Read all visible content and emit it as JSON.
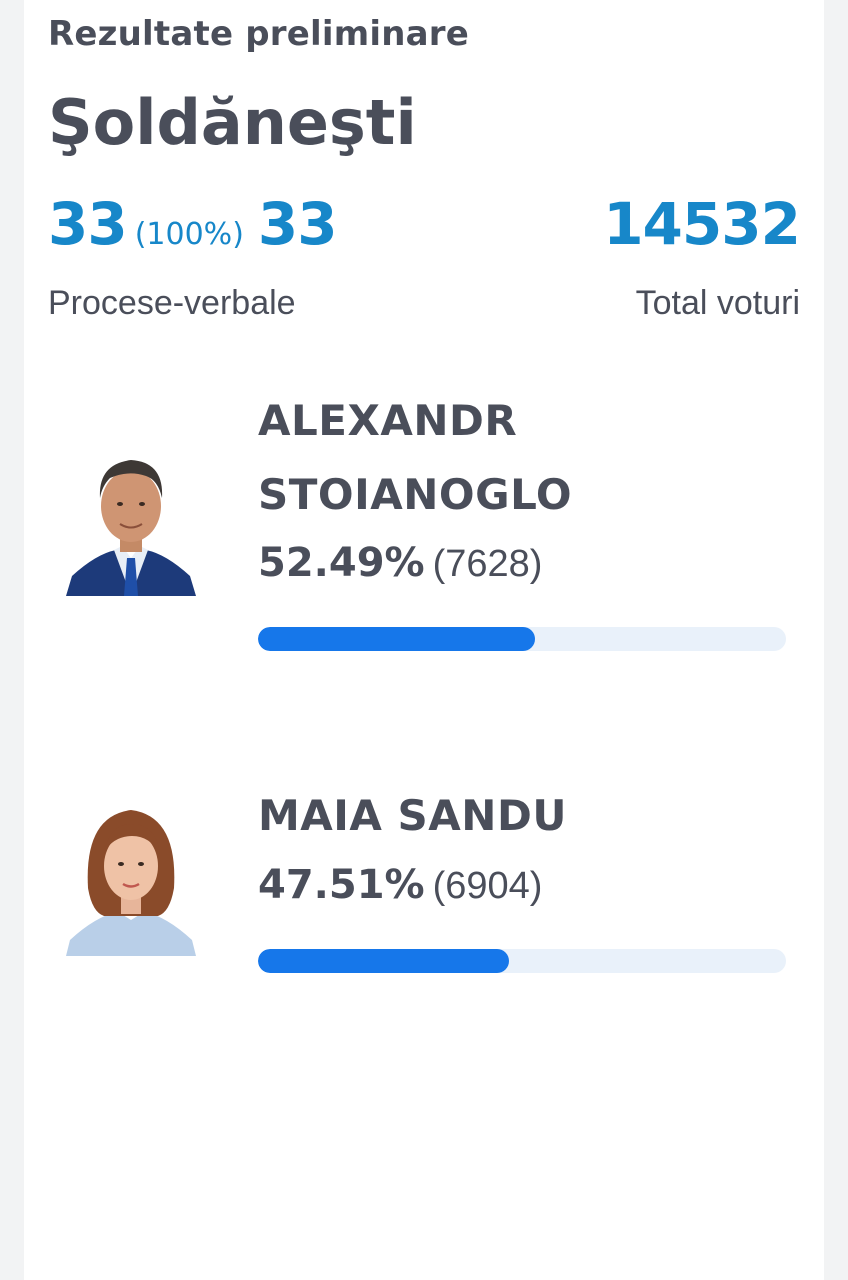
{
  "header": {
    "subtitle": "Rezultate preliminare",
    "place": "Şoldăneşti"
  },
  "stats": {
    "protocols_count": "33",
    "protocols_percent": "(100%)",
    "protocols_total": "33",
    "protocols_label": "Procese-verbale",
    "total_votes": "14532",
    "total_votes_label": "Total voturi"
  },
  "colors": {
    "accent": "#1787c9",
    "bar_fill": "#1677ea",
    "bar_track": "#e9f1fa",
    "text": "#4a4e5a"
  },
  "candidates": [
    {
      "name_line1": "ALEXANDR",
      "name_line2": "STOIANOGLO",
      "percent": "52.49%",
      "votes": "(7628)",
      "share": 0.5249
    },
    {
      "name_line1": "MAIA SANDU",
      "percent": "47.51%",
      "votes": "(6904)",
      "share": 0.4751
    }
  ]
}
